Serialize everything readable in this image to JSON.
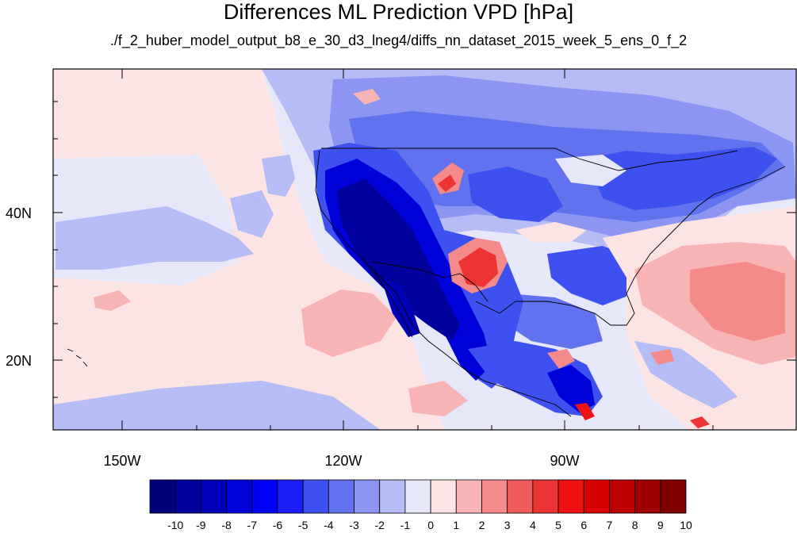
{
  "title": "Differences ML Prediction VPD [hPa]",
  "subtitle": "./f_2_huber_model_output_b8_e_30_d3_lneg4/diffs_nn_dataset_2015_week_5_ens_0_f_2",
  "map": {
    "lon_range": [
      -160,
      -62
    ],
    "lat_range": [
      10,
      59
    ],
    "lon_labels": [
      "150W",
      "120W",
      "90W"
    ],
    "lat_labels": [
      "40N",
      "20N"
    ]
  },
  "colorbar": {
    "labels": [
      "-10",
      "-9",
      "-8",
      "-7",
      "-6",
      "-5",
      "-4",
      "-3",
      "-2",
      "-1",
      "0",
      "1",
      "2",
      "3",
      "4",
      "5",
      "6",
      "7",
      "8",
      "9",
      "10"
    ],
    "colors": [
      "#00007a",
      "#00009c",
      "#0000b8",
      "#0000d8",
      "#0000f4",
      "#1e1ef8",
      "#3f50f0",
      "#6272ee",
      "#8c96f2",
      "#b6bcf5",
      "#e6e8fa",
      "#fde4e4",
      "#f8b4b4",
      "#f48a8a",
      "#ef5c5c",
      "#ec3434",
      "#ee1212",
      "#d80000",
      "#bc0000",
      "#a00000",
      "#800000"
    ]
  }
}
